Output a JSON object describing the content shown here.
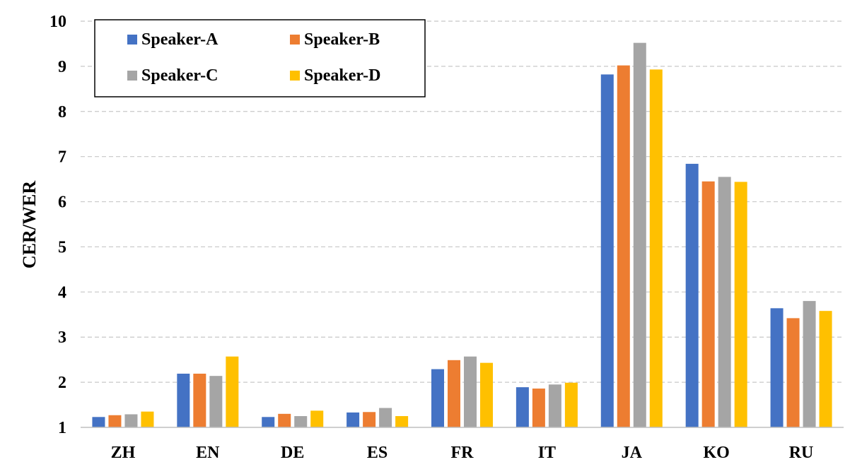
{
  "chart_data": {
    "type": "bar",
    "title": "",
    "xlabel": "",
    "ylabel": "CER/WER",
    "ylim": [
      1,
      10
    ],
    "yticks": [
      "1",
      "2",
      "3",
      "4",
      "5",
      "6",
      "7",
      "8",
      "9",
      "10"
    ],
    "grid": true,
    "legend_position": "top-left",
    "categories": [
      "ZH",
      "EN",
      "DE",
      "ES",
      "FR",
      "IT",
      "JA",
      "KO",
      "RU"
    ],
    "series": [
      {
        "name": "Speaker-A",
        "color": "#4472C4",
        "values": [
          1.23,
          2.19,
          1.23,
          1.33,
          2.29,
          1.89,
          8.82,
          6.84,
          3.64
        ]
      },
      {
        "name": "Speaker-B",
        "color": "#ED7D31",
        "values": [
          1.27,
          2.19,
          1.3,
          1.34,
          2.49,
          1.86,
          9.02,
          6.45,
          3.42
        ]
      },
      {
        "name": "Speaker-C",
        "color": "#A5A5A5",
        "values": [
          1.29,
          2.14,
          1.25,
          1.43,
          2.57,
          1.95,
          9.52,
          6.55,
          3.8
        ]
      },
      {
        "name": "Speaker-D",
        "color": "#FFC000",
        "values": [
          1.35,
          2.57,
          1.37,
          1.25,
          2.43,
          1.99,
          8.93,
          6.44,
          3.58
        ]
      }
    ]
  }
}
